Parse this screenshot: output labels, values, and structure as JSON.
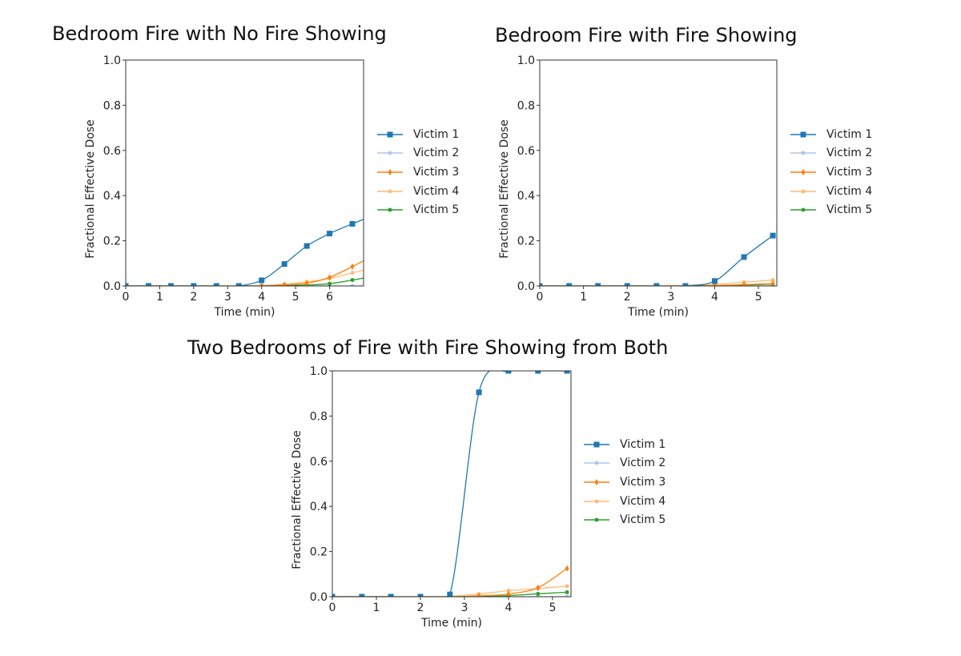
{
  "chart_data": [
    {
      "type": "line",
      "title": "Bedroom Fire with No Fire Showing",
      "xlabel": "Time (min)",
      "ylabel": "Fractional Effective Dose",
      "xlim": [
        0,
        7
      ],
      "ylim": [
        0,
        1.0
      ],
      "xticks": [
        0,
        1,
        2,
        3,
        4,
        5,
        6
      ],
      "yticks": [
        0.0,
        0.2,
        0.4,
        0.6,
        0.8,
        1.0
      ],
      "grid": false,
      "legend_position": "right",
      "x": [
        0,
        0.67,
        1.33,
        2.0,
        2.67,
        3.33,
        4.0,
        4.67,
        5.33,
        6.0,
        6.67,
        7.0
      ],
      "series": [
        {
          "name": "Victim 1",
          "color": "#1f77b4",
          "marker": "square",
          "values": [
            0,
            0,
            0,
            0,
            0,
            0,
            0.025,
            0.097,
            0.177,
            0.232,
            0.275,
            0.295
          ]
        },
        {
          "name": "Victim 2",
          "color": "#aec7e8",
          "marker": "circle",
          "values": [
            0,
            0,
            0,
            0,
            0,
            0,
            0,
            0,
            0,
            0,
            0,
            0
          ]
        },
        {
          "name": "Victim 3",
          "color": "#ff7f0e",
          "marker": "diamond",
          "values": [
            0,
            0,
            0,
            0,
            0,
            0,
            0,
            0.005,
            0.012,
            0.038,
            0.086,
            0.112
          ]
        },
        {
          "name": "Victim 4",
          "color": "#ffbb78",
          "marker": "circle",
          "values": [
            0,
            0,
            0,
            0,
            0,
            0,
            0.002,
            0.008,
            0.018,
            0.033,
            0.058,
            0.07
          ]
        },
        {
          "name": "Victim 5",
          "color": "#2ca02c",
          "marker": "circle",
          "values": [
            0,
            0,
            0,
            0,
            0,
            0,
            0,
            0.002,
            0.004,
            0.01,
            0.026,
            0.035
          ]
        }
      ]
    },
    {
      "type": "line",
      "title": "Bedroom Fire with Fire Showing",
      "xlabel": "Time (min)",
      "ylabel": "Fractional Effective Dose",
      "xlim": [
        0,
        5.42
      ],
      "ylim": [
        0,
        1.0
      ],
      "xticks": [
        0,
        1,
        2,
        3,
        4,
        5
      ],
      "yticks": [
        0.0,
        0.2,
        0.4,
        0.6,
        0.8,
        1.0
      ],
      "grid": false,
      "legend_position": "right",
      "x": [
        0,
        0.67,
        1.33,
        2.0,
        2.67,
        3.33,
        4.0,
        4.67,
        5.33
      ],
      "series": [
        {
          "name": "Victim 1",
          "color": "#1f77b4",
          "marker": "square",
          "values": [
            0,
            0,
            0,
            0,
            0,
            0,
            0.022,
            0.128,
            0.223
          ]
        },
        {
          "name": "Victim 2",
          "color": "#aec7e8",
          "marker": "circle",
          "values": [
            0,
            0,
            0,
            0,
            0,
            0,
            0,
            0,
            0
          ]
        },
        {
          "name": "Victim 3",
          "color": "#ff7f0e",
          "marker": "diamond",
          "values": [
            0,
            0,
            0,
            0,
            0,
            0,
            0.002,
            0.006,
            0.01
          ]
        },
        {
          "name": "Victim 4",
          "color": "#ffbb78",
          "marker": "circle",
          "values": [
            0,
            0,
            0,
            0,
            0,
            0.003,
            0.008,
            0.017,
            0.026
          ]
        },
        {
          "name": "Victim 5",
          "color": "#2ca02c",
          "marker": "circle",
          "values": [
            0,
            0,
            0,
            0,
            0,
            0,
            0.001,
            0.004,
            0.008
          ]
        }
      ]
    },
    {
      "type": "line",
      "title": "Two Bedrooms of Fire with Fire Showing from Both",
      "xlabel": "Time (min)",
      "ylabel": "Fractional Effective Dose",
      "xlim": [
        0,
        5.42
      ],
      "ylim": [
        0,
        1.0
      ],
      "xticks": [
        0,
        1,
        2,
        3,
        4,
        5
      ],
      "yticks": [
        0.0,
        0.2,
        0.4,
        0.6,
        0.8,
        1.0
      ],
      "grid": false,
      "legend_position": "right",
      "x": [
        0,
        0.67,
        1.33,
        2.0,
        2.67,
        3.33,
        4.0,
        4.67,
        5.33
      ],
      "series": [
        {
          "name": "Victim 1",
          "color": "#1f77b4",
          "marker": "square",
          "values": [
            0,
            0,
            0,
            0,
            0.01,
            0.905,
            1.0,
            1.0,
            1.0
          ]
        },
        {
          "name": "Victim 2",
          "color": "#aec7e8",
          "marker": "circle",
          "values": [
            0,
            0,
            0,
            0,
            0,
            0,
            0,
            0,
            0
          ]
        },
        {
          "name": "Victim 3",
          "color": "#ff7f0e",
          "marker": "diamond",
          "values": [
            0,
            0,
            0,
            0,
            0,
            0.004,
            0.012,
            0.04,
            0.125
          ]
        },
        {
          "name": "Victim 4",
          "color": "#ffbb78",
          "marker": "circle",
          "values": [
            0,
            0,
            0,
            0,
            0.002,
            0.012,
            0.027,
            0.036,
            0.047
          ]
        },
        {
          "name": "Victim 5",
          "color": "#2ca02c",
          "marker": "circle",
          "values": [
            0,
            0,
            0,
            0,
            0,
            0.001,
            0.005,
            0.013,
            0.02
          ]
        }
      ]
    }
  ],
  "legend_labels": [
    "Victim 1",
    "Victim 2",
    "Victim 3",
    "Victim 4",
    "Victim 5"
  ]
}
